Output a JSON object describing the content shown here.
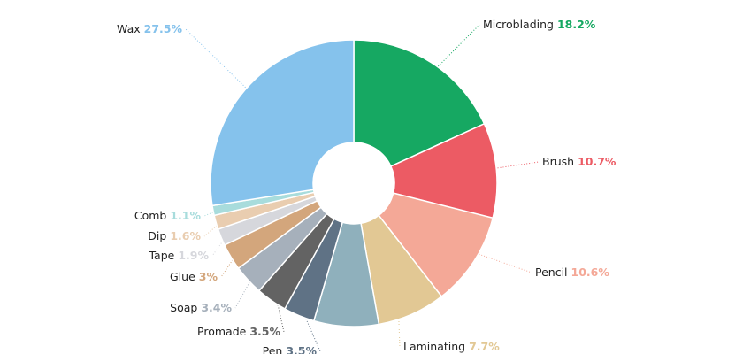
{
  "chart_data": {
    "type": "donut",
    "categories": [
      "Microblading",
      "Brush",
      "Pencil",
      "Laminating",
      null,
      "Pen",
      "Promade",
      "Soap",
      "Glue",
      "Tape",
      "Dip",
      "Comb",
      "Wax"
    ],
    "values": [
      18.2,
      10.7,
      10.6,
      7.7,
      7.3,
      3.5,
      3.5,
      3.4,
      3,
      1.9,
      1.6,
      1.1,
      27.5
    ],
    "value_labels": [
      "18.2%",
      "10.7%",
      "10.6%",
      "7.7%",
      null,
      "3.5%",
      "3.5%",
      "3.4%",
      "3%",
      "1.9%",
      "1.6%",
      "1.1%",
      "27.5%"
    ],
    "colors": [
      "#16a862",
      "#ec5b64",
      "#f4a897",
      "#e2c894",
      "#8fb0bc",
      "#5f7285",
      "#636363",
      "#a6b0bb",
      "#d3a67c",
      "#d6d7dc",
      "#e9cdb0",
      "#a8dcdc",
      "#85c2ec"
    ]
  }
}
